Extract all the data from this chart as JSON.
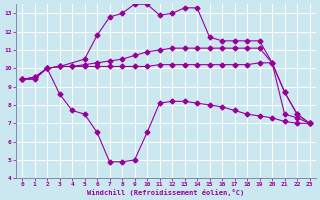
{
  "xlabel": "Windchill (Refroidissement éolien,°C)",
  "bg_color": "#cbe8f0",
  "grid_color": "#ffffff",
  "line_color": "#990099",
  "xlim": [
    -0.5,
    23.5
  ],
  "ylim": [
    4,
    13
  ],
  "yticks": [
    4,
    5,
    6,
    7,
    8,
    9,
    10,
    11,
    12,
    13
  ],
  "xticks": [
    0,
    1,
    2,
    3,
    4,
    5,
    6,
    7,
    8,
    9,
    10,
    11,
    12,
    13,
    14,
    15,
    16,
    17,
    18,
    19,
    20,
    21,
    22,
    23
  ],
  "line1_x": [
    0,
    1,
    2,
    3,
    4,
    5,
    6,
    7,
    8,
    9,
    10,
    11,
    12,
    13,
    14,
    15,
    16,
    17,
    18,
    19,
    20,
    21,
    22,
    23
  ],
  "line1_y": [
    9.4,
    9.5,
    10.0,
    10.1,
    10.1,
    10.1,
    10.1,
    10.1,
    10.1,
    10.1,
    10.1,
    10.2,
    10.2,
    10.2,
    10.2,
    10.2,
    10.2,
    10.2,
    10.2,
    10.3,
    10.3,
    7.5,
    7.3,
    7.0
  ],
  "line2_x": [
    0,
    1,
    2,
    3,
    4,
    5,
    6,
    7,
    8,
    9,
    10,
    11,
    12,
    13,
    14,
    15,
    16,
    17,
    18,
    19,
    20,
    21,
    22,
    23
  ],
  "line2_y": [
    9.4,
    9.5,
    10.0,
    10.1,
    10.1,
    10.2,
    10.3,
    10.4,
    10.5,
    10.7,
    10.9,
    11.0,
    11.1,
    11.1,
    11.1,
    11.1,
    11.1,
    11.1,
    11.1,
    11.1,
    10.3,
    8.7,
    7.5,
    7.0
  ],
  "line3_x": [
    0,
    1,
    2,
    3,
    4,
    5,
    6,
    7,
    8,
    9,
    10,
    11,
    12,
    13,
    14,
    15,
    16,
    17,
    18,
    19,
    20,
    21,
    22,
    23
  ],
  "line3_y": [
    9.4,
    9.4,
    10.0,
    8.6,
    7.7,
    7.5,
    6.5,
    4.9,
    4.9,
    5.0,
    6.5,
    8.1,
    8.2,
    8.2,
    8.1,
    8.0,
    7.9,
    7.7,
    7.5,
    7.4,
    7.3,
    7.1,
    7.0,
    7.0
  ],
  "line4_x": [
    0,
    1,
    2,
    3,
    5,
    6,
    7,
    8,
    9,
    10,
    11,
    12,
    13,
    14,
    15,
    16,
    17,
    18,
    19,
    20,
    21,
    22,
    23
  ],
  "line4_y": [
    9.4,
    9.5,
    10.0,
    10.1,
    10.5,
    11.8,
    12.8,
    13.0,
    13.5,
    13.5,
    12.9,
    13.0,
    13.3,
    13.3,
    11.7,
    11.5,
    11.5,
    11.5,
    11.5,
    10.3,
    8.7,
    7.5,
    7.0
  ]
}
